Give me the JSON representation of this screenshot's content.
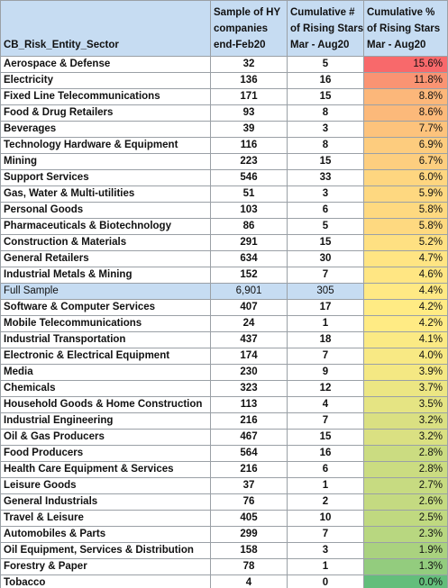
{
  "table": {
    "headers": {
      "sector": "CB_Risk_Entity_Sector",
      "sample": [
        "Sample of HY",
        "companies",
        "end-Feb20"
      ],
      "count": [
        "Cumulative #",
        "of Rising Stars",
        "Mar - Aug20"
      ],
      "pct": [
        "Cumulative %",
        "of Rising Stars",
        "Mar - Aug20"
      ]
    },
    "heat_scale": {
      "low_color": "#63be7b",
      "mid_color": "#ffeb84",
      "high_color": "#f8696b"
    },
    "rows": [
      {
        "sector": "Aerospace & Defense",
        "sample": "32",
        "count": "5",
        "pct": "15.6%",
        "pct_value": 15.6
      },
      {
        "sector": "Electricity",
        "sample": "136",
        "count": "16",
        "pct": "11.8%",
        "pct_value": 11.8
      },
      {
        "sector": "Fixed Line Telecommunications",
        "sample": "171",
        "count": "15",
        "pct": "8.8%",
        "pct_value": 8.8
      },
      {
        "sector": "Food & Drug Retailers",
        "sample": "93",
        "count": "8",
        "pct": "8.6%",
        "pct_value": 8.6
      },
      {
        "sector": "Beverages",
        "sample": "39",
        "count": "3",
        "pct": "7.7%",
        "pct_value": 7.7
      },
      {
        "sector": "Technology Hardware & Equipment",
        "sample": "116",
        "count": "8",
        "pct": "6.9%",
        "pct_value": 6.9
      },
      {
        "sector": "Mining",
        "sample": "223",
        "count": "15",
        "pct": "6.7%",
        "pct_value": 6.7
      },
      {
        "sector": "Support Services",
        "sample": "546",
        "count": "33",
        "pct": "6.0%",
        "pct_value": 6.0
      },
      {
        "sector": "Gas, Water & Multi-utilities",
        "sample": "51",
        "count": "3",
        "pct": "5.9%",
        "pct_value": 5.9
      },
      {
        "sector": "Personal Goods",
        "sample": "103",
        "count": "6",
        "pct": "5.8%",
        "pct_value": 5.8
      },
      {
        "sector": "Pharmaceuticals & Biotechnology",
        "sample": "86",
        "count": "5",
        "pct": "5.8%",
        "pct_value": 5.8
      },
      {
        "sector": "Construction & Materials",
        "sample": "291",
        "count": "15",
        "pct": "5.2%",
        "pct_value": 5.2
      },
      {
        "sector": "General Retailers",
        "sample": "634",
        "count": "30",
        "pct": "4.7%",
        "pct_value": 4.7
      },
      {
        "sector": "Industrial Metals & Mining",
        "sample": "152",
        "count": "7",
        "pct": "4.6%",
        "pct_value": 4.6
      },
      {
        "sector": "Full Sample",
        "sample": "6,901",
        "count": "305",
        "pct": "4.4%",
        "pct_value": 4.4,
        "highlight": true
      },
      {
        "sector": "Software & Computer Services",
        "sample": "407",
        "count": "17",
        "pct": "4.2%",
        "pct_value": 4.2
      },
      {
        "sector": "Mobile Telecommunications",
        "sample": "24",
        "count": "1",
        "pct": "4.2%",
        "pct_value": 4.2
      },
      {
        "sector": "Industrial Transportation",
        "sample": "437",
        "count": "18",
        "pct": "4.1%",
        "pct_value": 4.1
      },
      {
        "sector": "Electronic & Electrical Equipment",
        "sample": "174",
        "count": "7",
        "pct": "4.0%",
        "pct_value": 4.0
      },
      {
        "sector": "Media",
        "sample": "230",
        "count": "9",
        "pct": "3.9%",
        "pct_value": 3.9
      },
      {
        "sector": "Chemicals",
        "sample": "323",
        "count": "12",
        "pct": "3.7%",
        "pct_value": 3.7
      },
      {
        "sector": "Household Goods & Home Construction",
        "sample": "113",
        "count": "4",
        "pct": "3.5%",
        "pct_value": 3.5
      },
      {
        "sector": "Industrial Engineering",
        "sample": "216",
        "count": "7",
        "pct": "3.2%",
        "pct_value": 3.2
      },
      {
        "sector": "Oil & Gas Producers",
        "sample": "467",
        "count": "15",
        "pct": "3.2%",
        "pct_value": 3.2
      },
      {
        "sector": "Food Producers",
        "sample": "564",
        "count": "16",
        "pct": "2.8%",
        "pct_value": 2.8
      },
      {
        "sector": "Health Care Equipment & Services",
        "sample": "216",
        "count": "6",
        "pct": "2.8%",
        "pct_value": 2.8
      },
      {
        "sector": "Leisure Goods",
        "sample": "37",
        "count": "1",
        "pct": "2.7%",
        "pct_value": 2.7
      },
      {
        "sector": "General Industrials",
        "sample": "76",
        "count": "2",
        "pct": "2.6%",
        "pct_value": 2.6
      },
      {
        "sector": "Travel & Leisure",
        "sample": "405",
        "count": "10",
        "pct": "2.5%",
        "pct_value": 2.5
      },
      {
        "sector": "Automobiles & Parts",
        "sample": "299",
        "count": "7",
        "pct": "2.3%",
        "pct_value": 2.3
      },
      {
        "sector": "Oil Equipment, Services & Distribution",
        "sample": "158",
        "count": "3",
        "pct": "1.9%",
        "pct_value": 1.9
      },
      {
        "sector": "Forestry & Paper",
        "sample": "78",
        "count": "1",
        "pct": "1.3%",
        "pct_value": 1.3
      },
      {
        "sector": "Tobacco",
        "sample": "4",
        "count": "0",
        "pct": "0.0%",
        "pct_value": 0.0
      }
    ]
  }
}
